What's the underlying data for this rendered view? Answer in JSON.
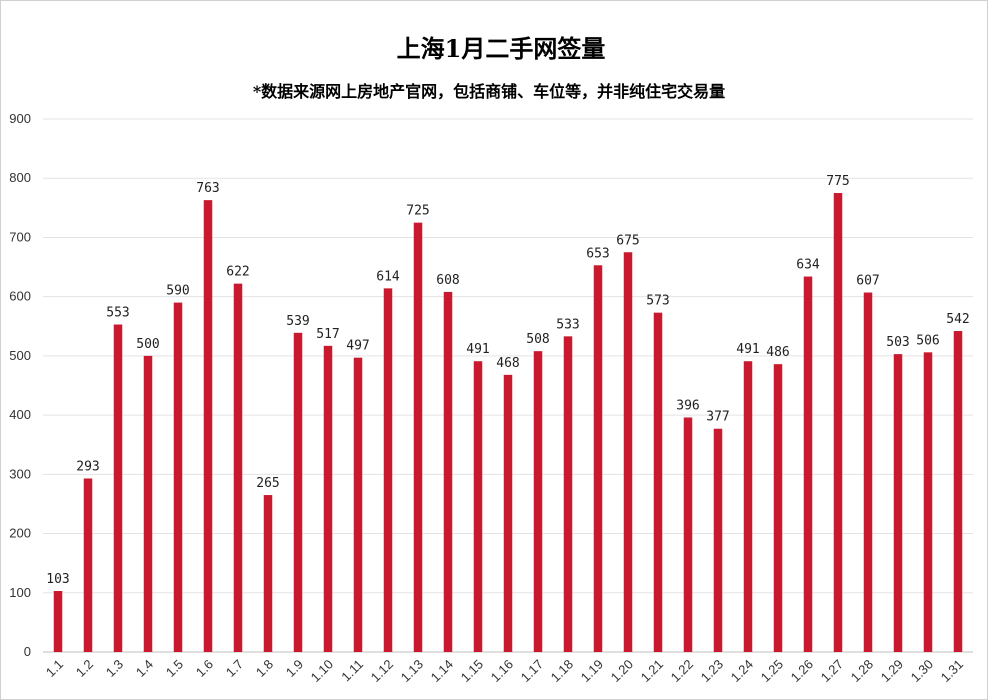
{
  "chart_data": {
    "type": "bar",
    "title": "上海1月二手网签量",
    "subtitle": "*数据来源网上房地产官网，包括商铺、车位等，并非纯住宅交易量",
    "xlabel": "",
    "ylabel": "",
    "ylim": [
      0,
      900
    ],
    "yticks": [
      0,
      100,
      200,
      300,
      400,
      500,
      600,
      700,
      800,
      900
    ],
    "grid": true,
    "legend": "none",
    "bar_color": "#c8192e",
    "categories": [
      "1.1",
      "1.2",
      "1.3",
      "1.4",
      "1.5",
      "1.6",
      "1.7",
      "1.8",
      "1.9",
      "1.10",
      "1.11",
      "1.12",
      "1.13",
      "1.14",
      "1.15",
      "1.16",
      "1.17",
      "1.18",
      "1.19",
      "1.20",
      "1.21",
      "1.22",
      "1.23",
      "1.24",
      "1.25",
      "1.26",
      "1.27",
      "1.28",
      "1.29",
      "1.30",
      "1.31"
    ],
    "values": [
      103,
      293,
      553,
      500,
      590,
      763,
      622,
      265,
      539,
      517,
      497,
      614,
      725,
      608,
      491,
      468,
      508,
      533,
      653,
      675,
      573,
      396,
      377,
      491,
      486,
      634,
      775,
      607,
      503,
      506,
      542
    ]
  }
}
